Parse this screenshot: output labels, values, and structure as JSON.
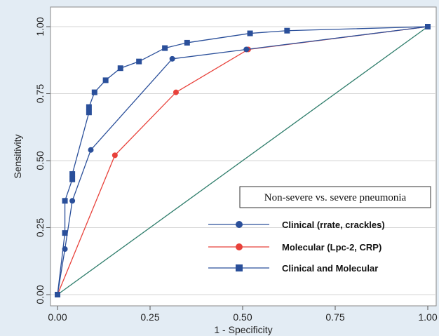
{
  "chart_data": {
    "type": "line",
    "title": "",
    "xlabel": "1 - Specificity",
    "ylabel": "Sensitivity",
    "xlim": [
      0,
      1
    ],
    "ylim": [
      0,
      1
    ],
    "xticks": [
      "0.00",
      "0.25",
      "0.50",
      "0.75",
      "1.00"
    ],
    "yticks": [
      "0.00",
      "0.25",
      "0.50",
      "0.75",
      "1.00"
    ],
    "grid": "horizontal",
    "legend": {
      "title": "Non-severe vs. severe  pneumonia",
      "placement": "lower-right"
    },
    "reference_line": {
      "x": [
        0,
        1
      ],
      "y": [
        0,
        1
      ],
      "color": "#2e7d6b"
    },
    "series": [
      {
        "name": "Clinical  (rrate, crackles)",
        "color": "#2a4f9a",
        "marker": "circle",
        "x": [
          0,
          0.02,
          0.04,
          0.09,
          0.31,
          0.51,
          1.0
        ],
        "y": [
          0,
          0.17,
          0.35,
          0.54,
          0.88,
          0.915,
          1.0
        ]
      },
      {
        "name": "Molecular (Lpc-2, CRP)",
        "color": "#e8413a",
        "marker": "circle",
        "x": [
          0,
          0.155,
          0.32,
          0.515,
          1.0
        ],
        "y": [
          0,
          0.52,
          0.755,
          0.915,
          1.0
        ]
      },
      {
        "name": "Clinical and Molecular",
        "color": "#2a4f9a",
        "marker": "square",
        "x": [
          0,
          0.02,
          0.02,
          0.04,
          0.04,
          0.085,
          0.085,
          0.1,
          0.13,
          0.17,
          0.22,
          0.29,
          0.35,
          0.52,
          0.62,
          1.0
        ],
        "y": [
          0,
          0.23,
          0.35,
          0.43,
          0.45,
          0.68,
          0.7,
          0.755,
          0.8,
          0.845,
          0.87,
          0.92,
          0.94,
          0.975,
          0.985,
          1.0
        ]
      }
    ]
  }
}
